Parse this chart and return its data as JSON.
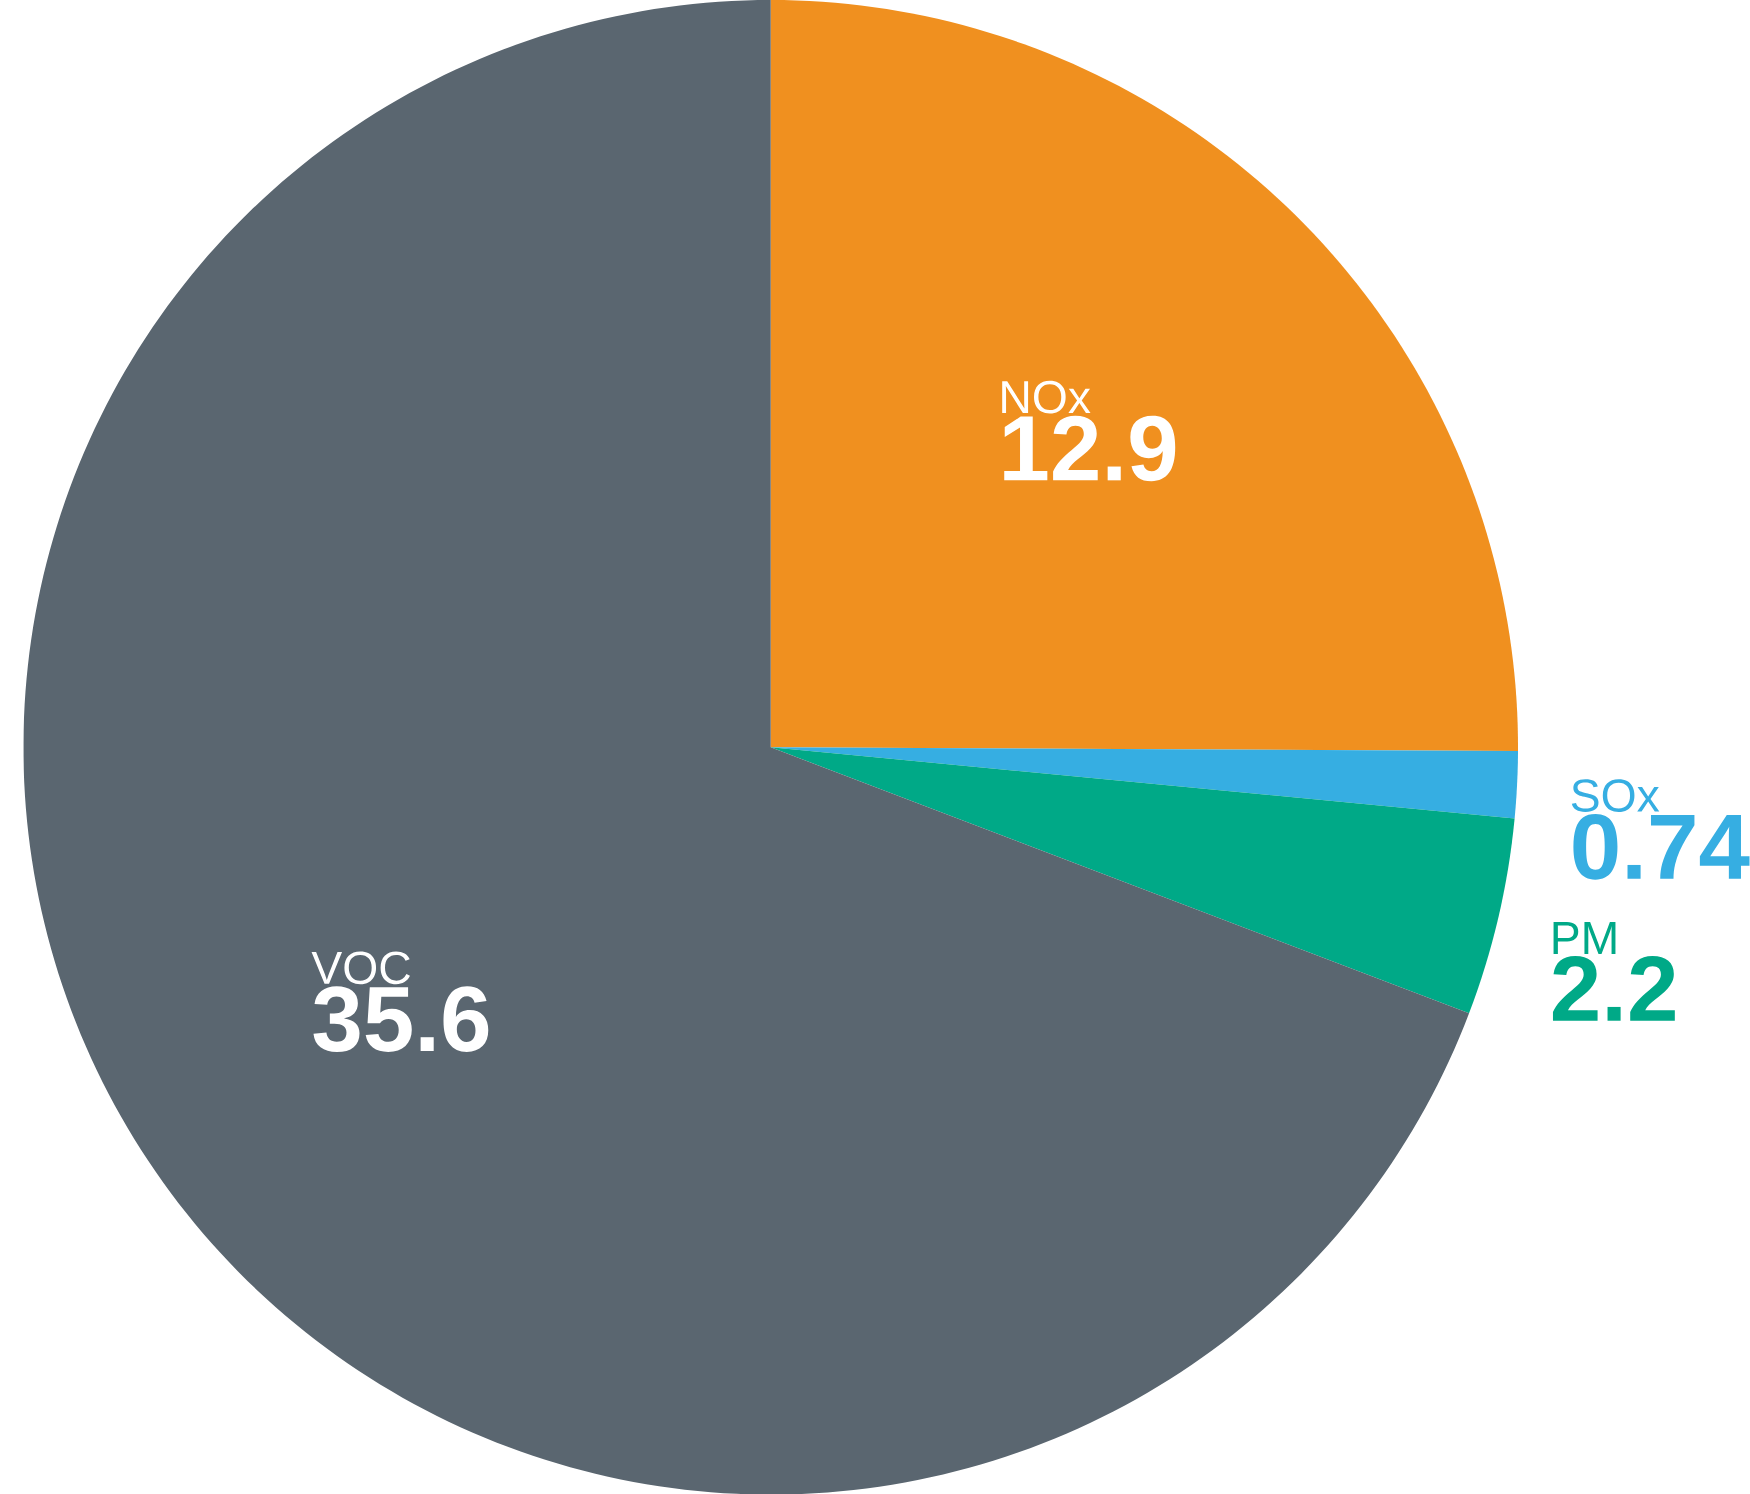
{
  "chart_data": {
    "type": "pie",
    "categories": [
      "NOx",
      "SOx",
      "PM",
      "VOC"
    ],
    "values": [
      12.9,
      0.74,
      2.2,
      35.6
    ],
    "colors": [
      "#f0901f",
      "#36aee2",
      "#00a987",
      "#5a6670"
    ],
    "data_labels": true
  }
}
